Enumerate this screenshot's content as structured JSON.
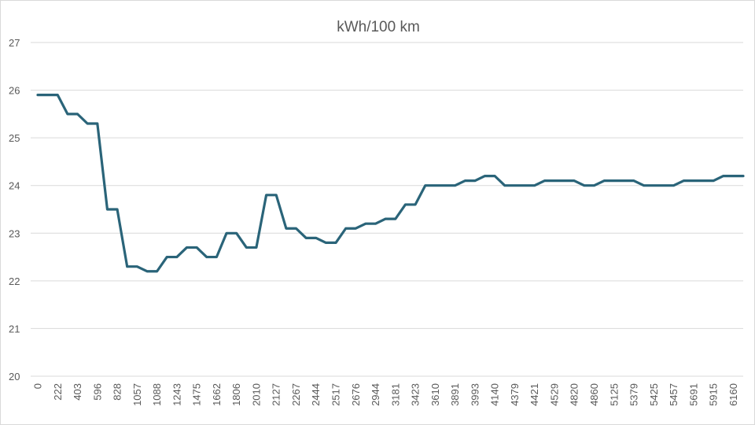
{
  "chart_data": {
    "type": "line",
    "title": "kWh/100 km",
    "xlabel": "",
    "ylabel": "",
    "ylim": [
      20,
      27
    ],
    "yticks": [
      20,
      21,
      22,
      23,
      24,
      25,
      26,
      27
    ],
    "grid": true,
    "legend": "none",
    "line_color": "#2a6479",
    "categories": [
      "0",
      "",
      "222",
      "",
      "403",
      "",
      "596",
      "",
      "828",
      "",
      "1057",
      "",
      "1088",
      "",
      "1243",
      "",
      "1475",
      "",
      "1662",
      "",
      "1806",
      "",
      "2010",
      "",
      "2127",
      "",
      "2267",
      "",
      "2444",
      "",
      "2517",
      "",
      "2676",
      "",
      "2944",
      "",
      "3181",
      "",
      "3423",
      "",
      "3610",
      "",
      "3891",
      "",
      "3993",
      "",
      "4140",
      "",
      "4379",
      "",
      "4421",
      "",
      "4529",
      "",
      "4820",
      "",
      "4860",
      "",
      "5125",
      "",
      "5379",
      "",
      "5425",
      "",
      "5457",
      "",
      "5691",
      "",
      "5915",
      "",
      "6160",
      ""
    ],
    "series": [
      {
        "values": [
          25.9,
          25.9,
          25.9,
          25.5,
          25.5,
          25.3,
          25.3,
          23.5,
          23.5,
          22.3,
          22.3,
          22.2,
          22.2,
          22.5,
          22.5,
          22.7,
          22.7,
          22.5,
          22.5,
          23.0,
          23.0,
          22.7,
          22.7,
          23.8,
          23.8,
          23.1,
          23.1,
          22.9,
          22.9,
          22.8,
          22.8,
          23.1,
          23.1,
          23.2,
          23.2,
          23.3,
          23.3,
          23.6,
          23.6,
          24.0,
          24.0,
          24.0,
          24.0,
          24.1,
          24.1,
          24.2,
          24.2,
          24.0,
          24.0,
          24.0,
          24.0,
          24.1,
          24.1,
          24.1,
          24.1,
          24.0,
          24.0,
          24.1,
          24.1,
          24.1,
          24.1,
          24.0,
          24.0,
          24.0,
          24.0,
          24.1,
          24.1,
          24.1,
          24.1,
          24.2,
          24.2,
          24.2
        ]
      }
    ]
  }
}
